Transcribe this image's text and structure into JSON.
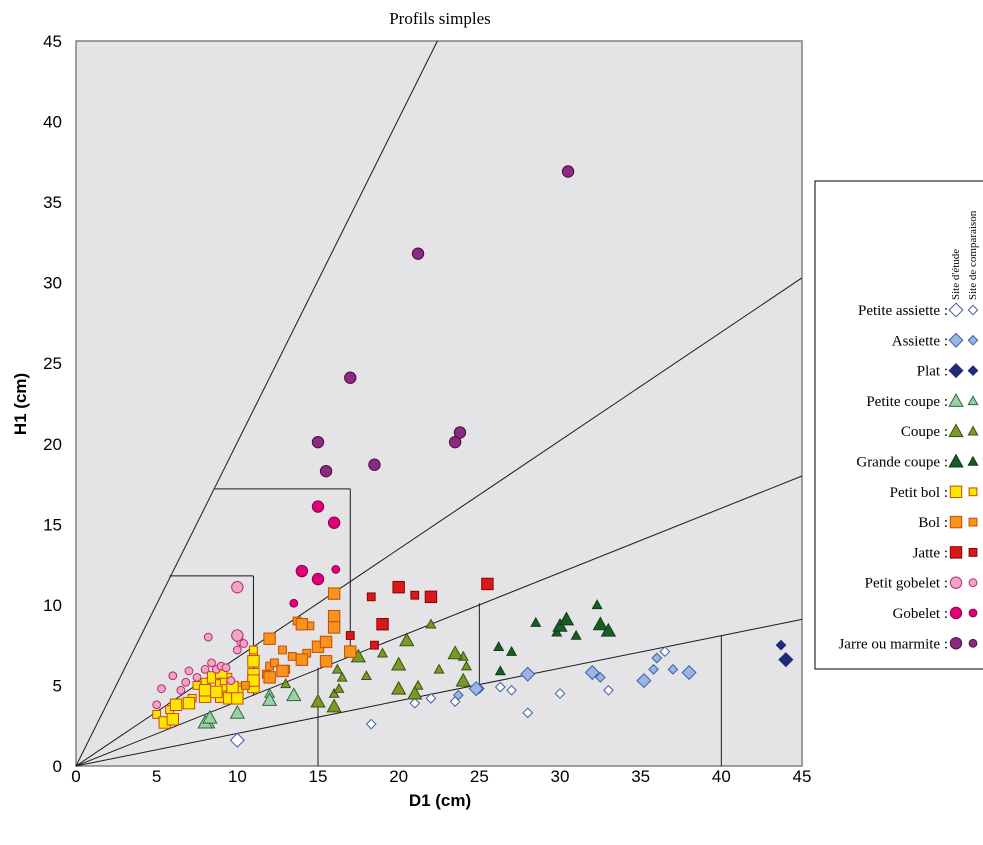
{
  "chart_data": {
    "type": "scatter",
    "title": "Profils simples",
    "xlabel": "D1 (cm)",
    "ylabel": "H1 (cm)",
    "xlim": [
      0,
      45
    ],
    "ylim": [
      0,
      45
    ],
    "xticks": [
      0,
      5,
      10,
      15,
      20,
      25,
      30,
      35,
      40,
      45
    ],
    "yticks": [
      0,
      5,
      10,
      15,
      20,
      25,
      30,
      35,
      40,
      45
    ],
    "grid": false,
    "legend": {
      "placement": "right",
      "headers": [
        "Site d'étude",
        "Site de comparaison"
      ]
    },
    "reference_lines": [
      {
        "from": [
          0,
          0
        ],
        "to": [
          22.4,
          45
        ]
      },
      {
        "from": [
          0,
          0
        ],
        "to": [
          45,
          30.3
        ]
      },
      {
        "from": [
          0,
          0
        ],
        "to": [
          45,
          18
        ]
      },
      {
        "from": [
          0,
          0
        ],
        "to": [
          45,
          9.1
        ]
      },
      {
        "from": [
          8.6,
          17.2
        ],
        "to": [
          17,
          17.2
        ]
      },
      {
        "from": [
          17,
          17.2
        ],
        "to": [
          17,
          6.8
        ]
      },
      {
        "from": [
          5.8,
          11.8
        ],
        "to": [
          11,
          11.8
        ]
      },
      {
        "from": [
          11,
          11.8
        ],
        "to": [
          11,
          4.4
        ]
      },
      {
        "from": [
          25,
          10.1
        ],
        "to": [
          25,
          5.0
        ]
      },
      {
        "from": [
          15,
          6.1
        ],
        "to": [
          15,
          0
        ]
      },
      {
        "from": [
          40,
          8.1
        ],
        "to": [
          40,
          0
        ]
      }
    ],
    "series": [
      {
        "name": "Petite assiette",
        "marker": "diamond",
        "fill": "#ffffff",
        "stroke": "#3d5ea8",
        "study": [
          [
            10,
            1.6
          ]
        ],
        "comparison": [
          [
            18.3,
            2.6
          ],
          [
            21,
            3.9
          ],
          [
            22,
            4.2
          ],
          [
            23.5,
            4.0
          ],
          [
            25,
            4.8
          ],
          [
            26.3,
            4.9
          ],
          [
            27,
            4.7
          ],
          [
            28,
            3.3
          ],
          [
            30,
            4.5
          ],
          [
            33,
            4.7
          ],
          [
            36.5,
            7.1
          ]
        ]
      },
      {
        "name": "Assiette",
        "marker": "diamond",
        "fill": "#9bb5e3",
        "stroke": "#3d5ea8",
        "study": [
          [
            24.8,
            4.8
          ],
          [
            28,
            5.7
          ],
          [
            32,
            5.8
          ],
          [
            35.2,
            5.3
          ],
          [
            38,
            5.8
          ]
        ],
        "comparison": [
          [
            23.7,
            4.4
          ],
          [
            32.5,
            5.5
          ],
          [
            35.8,
            6.0
          ],
          [
            36,
            6.7
          ],
          [
            37,
            6.0
          ]
        ]
      },
      {
        "name": "Plat",
        "marker": "diamond",
        "fill": "#1f2a7a",
        "stroke": "#1f2a7a",
        "study": [
          [
            44,
            6.6
          ]
        ],
        "comparison": [
          [
            43.7,
            7.5
          ]
        ]
      },
      {
        "name": "Petite coupe",
        "marker": "triangle",
        "fill": "#9ccfa6",
        "stroke": "#2a6b3a",
        "study": [
          [
            8,
            2.7
          ],
          [
            8.3,
            3.0
          ],
          [
            10,
            3.3
          ],
          [
            12,
            4.1
          ],
          [
            13.5,
            4.4
          ]
        ],
        "comparison": [
          [
            8.3,
            2.6
          ],
          [
            12,
            4.5
          ]
        ]
      },
      {
        "name": "Coupe",
        "marker": "triangle",
        "fill": "#7a9a28",
        "stroke": "#3d4f10",
        "study": [
          [
            15,
            4.0
          ],
          [
            16,
            3.7
          ],
          [
            17.5,
            6.8
          ],
          [
            20,
            4.8
          ],
          [
            20.5,
            7.8
          ],
          [
            21,
            4.5
          ],
          [
            24,
            5.3
          ],
          [
            20,
            6.3
          ],
          [
            23.5,
            7.0
          ]
        ],
        "comparison": [
          [
            13,
            5.1
          ],
          [
            16,
            4.5
          ],
          [
            16.3,
            4.8
          ],
          [
            16.5,
            5.5
          ],
          [
            18,
            5.6
          ],
          [
            19,
            7.0
          ],
          [
            21.2,
            5.0
          ],
          [
            22,
            8.8
          ],
          [
            22.5,
            6.0
          ],
          [
            24,
            6.8
          ],
          [
            24.2,
            6.2
          ],
          [
            16.2,
            6.0
          ]
        ]
      },
      {
        "name": "Grande coupe",
        "marker": "triangle",
        "fill": "#1a5c28",
        "stroke": "#0f3d18",
        "study": [
          [
            30,
            8.7
          ],
          [
            30.4,
            9.1
          ],
          [
            32.5,
            8.8
          ],
          [
            33,
            8.4
          ]
        ],
        "comparison": [
          [
            26.2,
            7.4
          ],
          [
            26.3,
            5.9
          ],
          [
            27,
            7.1
          ],
          [
            28.5,
            8.9
          ],
          [
            29.8,
            8.3
          ],
          [
            31,
            8.1
          ],
          [
            32.3,
            10.0
          ]
        ]
      },
      {
        "name": "Petit bol",
        "marker": "square",
        "fill": "#ffe600",
        "stroke": "#c84a00",
        "study": [
          [
            5.5,
            2.7
          ],
          [
            6,
            2.9
          ],
          [
            6.2,
            3.8
          ],
          [
            7,
            3.9
          ],
          [
            8,
            4.3
          ],
          [
            8,
            4.7
          ],
          [
            8.5,
            5.5
          ],
          [
            9,
            5.0
          ],
          [
            9,
            4.3
          ],
          [
            9.3,
            5.4
          ],
          [
            9.5,
            4.2
          ],
          [
            10,
            4.6
          ],
          [
            10,
            4.2
          ],
          [
            11,
            4.9
          ],
          [
            11,
            5.7
          ],
          [
            11,
            6.5
          ],
          [
            9,
            5.8
          ],
          [
            8.7,
            4.6
          ],
          [
            9.7,
            4.9
          ],
          [
            11,
            5.3
          ]
        ],
        "comparison": [
          [
            5,
            3.2
          ],
          [
            5.8,
            3.5
          ],
          [
            7.2,
            4.2
          ],
          [
            7.5,
            5.0
          ],
          [
            8,
            5.2
          ],
          [
            9.5,
            4.5
          ],
          [
            10,
            4.9
          ],
          [
            11,
            6.8
          ],
          [
            11,
            7.2
          ]
        ]
      },
      {
        "name": "Bol",
        "marker": "square",
        "fill": "#f7941d",
        "stroke": "#c84a00",
        "study": [
          [
            12,
            7.9
          ],
          [
            14,
            8.8
          ],
          [
            14,
            6.6
          ],
          [
            15,
            7.4
          ],
          [
            15.5,
            6.5
          ],
          [
            15.5,
            7.7
          ],
          [
            16,
            9.3
          ],
          [
            16,
            8.6
          ],
          [
            16,
            10.7
          ],
          [
            17,
            7.1
          ],
          [
            12,
            5.5
          ],
          [
            12.8,
            5.9
          ]
        ],
        "comparison": [
          [
            10.5,
            5.0
          ],
          [
            11.8,
            5.7
          ],
          [
            12,
            6.2
          ],
          [
            12.3,
            6.4
          ],
          [
            12.8,
            7.2
          ],
          [
            13,
            6.0
          ],
          [
            13.4,
            6.8
          ],
          [
            13.7,
            9.0
          ],
          [
            14.3,
            7.0
          ],
          [
            14.5,
            8.7
          ]
        ]
      },
      {
        "name": "Jatte",
        "marker": "square",
        "fill": "#d7191c",
        "stroke": "#8b0000",
        "study": [
          [
            19,
            8.8
          ],
          [
            20,
            11.1
          ],
          [
            22,
            10.5
          ],
          [
            25.5,
            11.3
          ]
        ],
        "comparison": [
          [
            17,
            8.1
          ],
          [
            18.3,
            10.5
          ],
          [
            18.5,
            7.5
          ],
          [
            21,
            10.6
          ]
        ]
      },
      {
        "name": "Petit gobelet",
        "marker": "circle",
        "fill": "#f2a3c7",
        "stroke": "#b0306a",
        "study": [
          [
            10,
            11.1
          ],
          [
            10,
            8.1
          ]
        ],
        "comparison": [
          [
            5,
            3.8
          ],
          [
            5.3,
            4.8
          ],
          [
            6,
            5.6
          ],
          [
            6.5,
            4.7
          ],
          [
            6.8,
            5.2
          ],
          [
            7,
            5.9
          ],
          [
            7.5,
            5.5
          ],
          [
            8,
            6.0
          ],
          [
            8.2,
            8.0
          ],
          [
            8.4,
            6.4
          ],
          [
            8.7,
            6.0
          ],
          [
            9,
            6.2
          ],
          [
            9.3,
            6.1
          ],
          [
            9.6,
            5.3
          ],
          [
            10,
            7.2
          ],
          [
            10.2,
            7.7
          ],
          [
            10.4,
            7.6
          ]
        ]
      },
      {
        "name": "Gobelet",
        "marker": "circle",
        "fill": "#e2007a",
        "stroke": "#8b004a",
        "study": [
          [
            14,
            12.1
          ],
          [
            15,
            11.6
          ],
          [
            15,
            16.1
          ],
          [
            16,
            15.1
          ]
        ],
        "comparison": [
          [
            13.5,
            10.1
          ],
          [
            16.1,
            12.2
          ]
        ]
      },
      {
        "name": "Jarre ou marmite",
        "marker": "circle",
        "fill": "#8b2a7e",
        "stroke": "#4a0e42",
        "study": [
          [
            15,
            20.1
          ],
          [
            15.5,
            18.3
          ],
          [
            17,
            24.1
          ],
          [
            18.5,
            18.7
          ],
          [
            21.2,
            31.8
          ],
          [
            23.5,
            20.1
          ],
          [
            23.8,
            20.7
          ],
          [
            30.5,
            36.9
          ]
        ],
        "comparison": []
      }
    ]
  }
}
